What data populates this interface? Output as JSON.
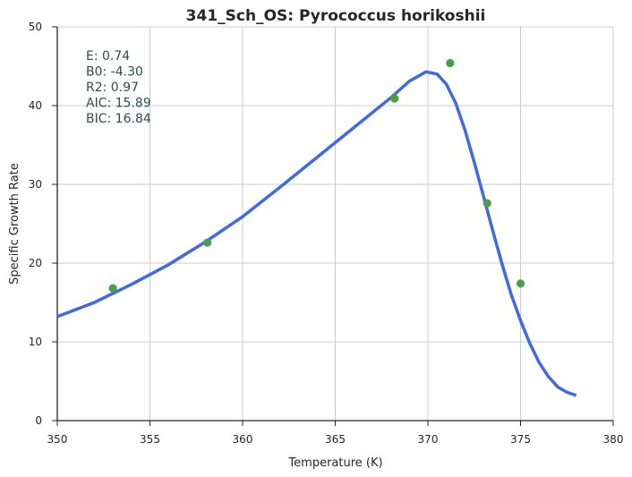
{
  "chart_data": {
    "type": "scatter",
    "title": "341_Sch_OS: Pyrococcus horikoshii",
    "xlabel": "Temperature (K)",
    "ylabel": "Specific Growth Rate",
    "xlim": [
      350,
      380
    ],
    "ylim": [
      0,
      50
    ],
    "x_ticks": [
      350,
      355,
      360,
      365,
      370,
      375,
      380
    ],
    "y_ticks": [
      0,
      10,
      20,
      30,
      40,
      50
    ],
    "grid": true,
    "series": [
      {
        "kind": "scatter",
        "color": "#4a9e4a",
        "x": [
          353.0,
          358.1,
          368.2,
          371.2,
          373.2,
          375.0
        ],
        "y": [
          16.8,
          22.6,
          40.9,
          45.4,
          27.6,
          17.4
        ]
      },
      {
        "kind": "line",
        "color": "#4169e1",
        "x": [
          350,
          352,
          354,
          356,
          358,
          360,
          362,
          364,
          366,
          368,
          369,
          369.9,
          370.5,
          371,
          371.5,
          372,
          372.5,
          373,
          373.5,
          374,
          374.5,
          375,
          375.5,
          376,
          376.5,
          377,
          377.5,
          378
        ],
        "y": [
          13.2,
          15.0,
          17.3,
          19.8,
          22.7,
          25.9,
          29.6,
          33.4,
          37.2,
          41.0,
          43.1,
          44.3,
          44.0,
          42.7,
          40.3,
          36.9,
          32.8,
          28.5,
          24.1,
          19.9,
          16.0,
          12.7,
          9.8,
          7.4,
          5.6,
          4.3,
          3.6,
          3.2
        ]
      }
    ],
    "annotations": [
      {
        "label": "E:",
        "value": "0.74"
      },
      {
        "label": "B0:",
        "value": "-4.30"
      },
      {
        "label": "R2:",
        "value": "0.97"
      },
      {
        "label": "AIC:",
        "value": "15.89"
      },
      {
        "label": "BIC:",
        "value": "16.84"
      }
    ]
  }
}
